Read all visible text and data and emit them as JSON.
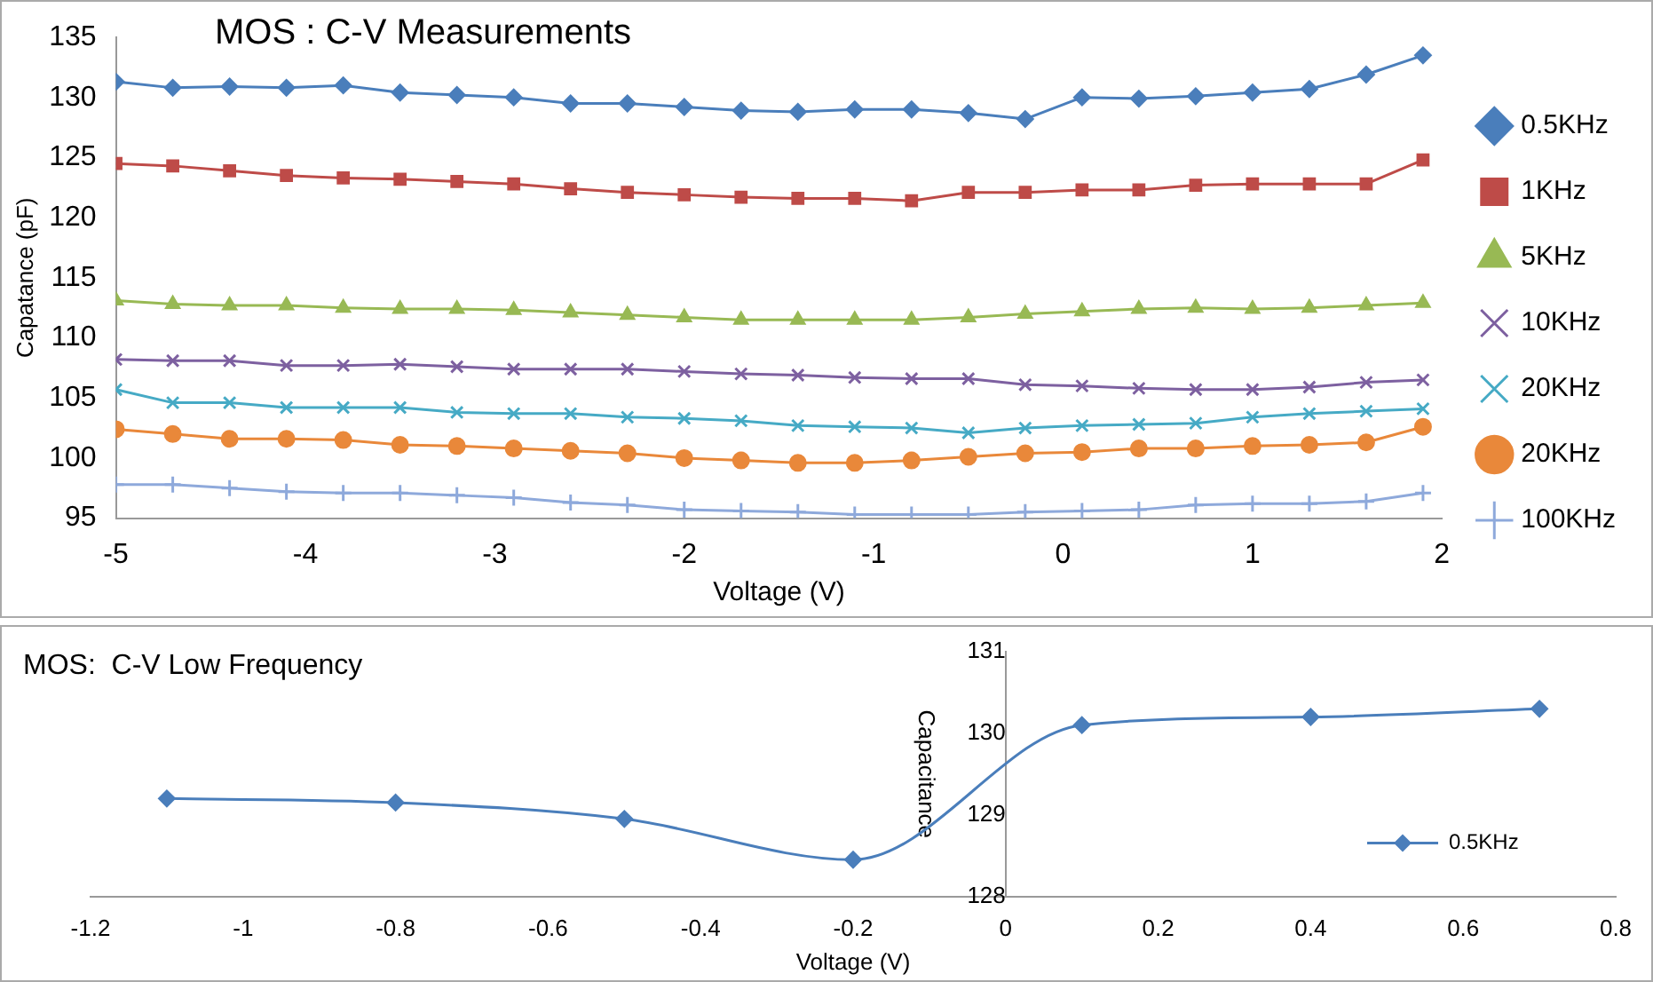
{
  "chart_data": [
    {
      "type": "line",
      "title": "MOS : C-V Measurements",
      "xlabel": "Voltage (V)",
      "ylabel": "Capatance (pF)",
      "x": [
        -5,
        -4.7,
        -4.4,
        -4.1,
        -3.8,
        -3.5,
        -3.2,
        -2.9,
        -2.6,
        -2.3,
        -2,
        -1.7,
        -1.4,
        -1.1,
        -0.8,
        -0.5,
        -0.2,
        0.1,
        0.4,
        0.7,
        1,
        1.3,
        1.6,
        1.9
      ],
      "xlim": [
        -5,
        2
      ],
      "xticks": [
        -5,
        -4,
        -3,
        -2,
        -1,
        0,
        1,
        2
      ],
      "ylim": [
        95,
        135
      ],
      "yticks": [
        95,
        100,
        105,
        110,
        115,
        120,
        125,
        130,
        135
      ],
      "grid": false,
      "legend": "right",
      "series": [
        {
          "name": "0.5KHz",
          "color": "#4a7ebb",
          "marker": "diamond",
          "values": [
            131.3,
            130.8,
            130.9,
            130.8,
            131.0,
            130.4,
            130.2,
            130.0,
            129.5,
            129.5,
            129.2,
            128.9,
            128.8,
            129.0,
            129.0,
            128.7,
            128.2,
            130.0,
            129.9,
            130.1,
            130.4,
            130.7,
            131.9,
            133.5
          ]
        },
        {
          "name": "1KHz",
          "color": "#be4b48",
          "marker": "square",
          "values": [
            124.5,
            124.3,
            123.9,
            123.5,
            123.3,
            123.2,
            123.0,
            122.8,
            122.4,
            122.1,
            121.9,
            121.7,
            121.6,
            121.6,
            121.4,
            122.1,
            122.1,
            122.3,
            122.3,
            122.7,
            122.8,
            122.8,
            122.8,
            124.8
          ]
        },
        {
          "name": "5KHz",
          "color": "#98b954",
          "marker": "triangle",
          "values": [
            113.1,
            112.8,
            112.7,
            112.7,
            112.5,
            112.4,
            112.4,
            112.3,
            112.1,
            111.9,
            111.7,
            111.5,
            111.5,
            111.5,
            111.5,
            111.7,
            112.0,
            112.2,
            112.4,
            112.5,
            112.4,
            112.5,
            112.7,
            112.9
          ]
        },
        {
          "name": "10KHz",
          "color": "#7d60a0",
          "marker": "cross",
          "values": [
            108.2,
            108.1,
            108.1,
            107.7,
            107.7,
            107.8,
            107.6,
            107.4,
            107.4,
            107.4,
            107.2,
            107.0,
            106.9,
            106.7,
            106.6,
            106.6,
            106.1,
            106.0,
            105.8,
            105.7,
            105.7,
            105.9,
            106.3,
            106.5
          ]
        },
        {
          "name": "20KHz",
          "color": "#46aac5",
          "marker": "cross",
          "values": [
            105.7,
            104.6,
            104.6,
            104.2,
            104.2,
            104.2,
            103.8,
            103.7,
            103.7,
            103.4,
            103.3,
            103.1,
            102.7,
            102.6,
            102.5,
            102.1,
            102.5,
            102.7,
            102.8,
            102.9,
            103.4,
            103.7,
            103.9,
            104.1
          ]
        },
        {
          "name": "20KHz",
          "color": "#e9883a",
          "marker": "circle",
          "values": [
            102.4,
            102.0,
            101.6,
            101.6,
            101.5,
            101.1,
            101.0,
            100.8,
            100.6,
            100.4,
            100.0,
            99.8,
            99.6,
            99.6,
            99.8,
            100.1,
            100.4,
            100.5,
            100.8,
            100.8,
            101.0,
            101.1,
            101.3,
            102.6
          ]
        },
        {
          "name": "100KHz",
          "color": "#8ea9db",
          "marker": "plus",
          "values": [
            97.8,
            97.8,
            97.5,
            97.2,
            97.1,
            97.1,
            96.9,
            96.7,
            96.3,
            96.1,
            95.7,
            95.6,
            95.5,
            95.3,
            95.3,
            95.3,
            95.5,
            95.6,
            95.7,
            96.1,
            96.2,
            96.2,
            96.4,
            97.1
          ]
        }
      ]
    },
    {
      "type": "line",
      "title": "MOS:  C-V Low Frequency",
      "xlabel": "Voltage (V)",
      "ylabel": "Capacitance",
      "x": [
        -1.1,
        -0.8,
        -0.5,
        -0.2,
        0.1,
        0.4,
        0.7
      ],
      "xlim": [
        -1.2,
        0.8
      ],
      "xticks": [
        -1.2,
        -1,
        -0.8,
        -0.6,
        -0.4,
        -0.2,
        0,
        0.2,
        0.4,
        0.6,
        0.8
      ],
      "ylim": [
        128,
        131
      ],
      "yticks": [
        128,
        129,
        130,
        131
      ],
      "grid": false,
      "legend": "bottom right",
      "series": [
        {
          "name": "0.5KHz",
          "color": "#4a7ebb",
          "marker": "diamond",
          "values": [
            129.2,
            129.15,
            128.95,
            128.45,
            130.1,
            130.2,
            130.3
          ]
        }
      ]
    }
  ]
}
